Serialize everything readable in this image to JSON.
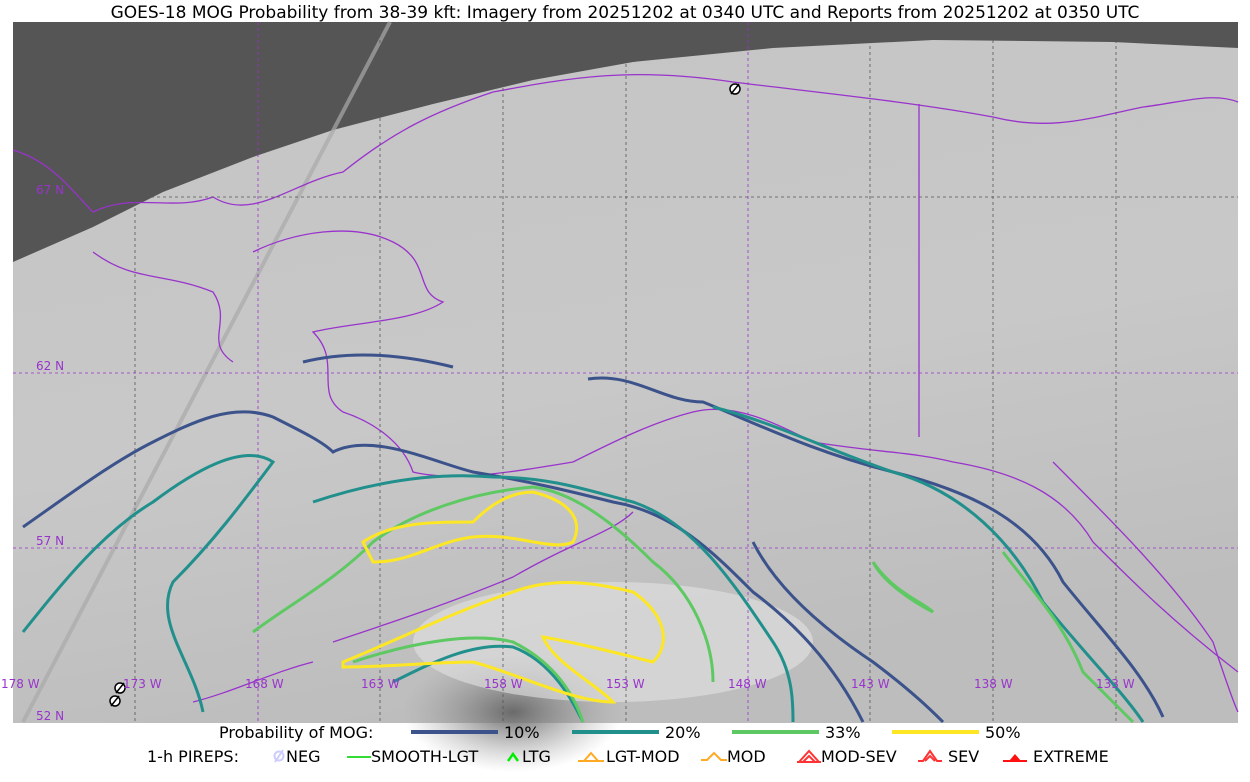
{
  "title": "GOES-18 MOG Probability from 38-39 kft: Imagery from 20251202 at 0340 UTC and Reports from 20251202 at 0350 UTC",
  "map": {
    "longitude_labels": [
      "178 W",
      "173 W",
      "168 W",
      "163 W",
      "158 W",
      "153 W",
      "148 W",
      "143 W",
      "138 W",
      "133 W"
    ],
    "latitude_labels": [
      "67 N",
      "62 N",
      "57 N",
      "52 N"
    ],
    "colors": {
      "coastline": "#9933cc",
      "grid": "#9933cc",
      "space": "#555555"
    }
  },
  "legend": {
    "probability_label": "Probability of MOG:",
    "probability_levels": [
      {
        "label": "10%",
        "color": "#3b528b"
      },
      {
        "label": "20%",
        "color": "#21908c"
      },
      {
        "label": "33%",
        "color": "#5ec962"
      },
      {
        "label": "50%",
        "color": "#fde725"
      }
    ],
    "pireps_label": "1-h PIREPS:",
    "pireps": [
      {
        "label": "NEG",
        "icon": "neg-icon",
        "color": "#ccccff"
      },
      {
        "label": "SMOOTH-LGT",
        "icon": "smooth-lgt-icon",
        "color": "#33dd33"
      },
      {
        "label": "LTG",
        "icon": "ltg-icon",
        "color": "#00ee00"
      },
      {
        "label": "LGT-MOD",
        "icon": "lgt-mod-icon",
        "color": "#ffaa22"
      },
      {
        "label": "MOD",
        "icon": "mod-icon",
        "color": "#ffaa22"
      },
      {
        "label": "MOD-SEV",
        "icon": "mod-sev-icon",
        "color": "#ff3333"
      },
      {
        "label": "SEV",
        "icon": "sev-icon",
        "color": "#ff3333"
      },
      {
        "label": "EXTREME",
        "icon": "extreme-icon",
        "color": "#ff1111"
      }
    ]
  }
}
